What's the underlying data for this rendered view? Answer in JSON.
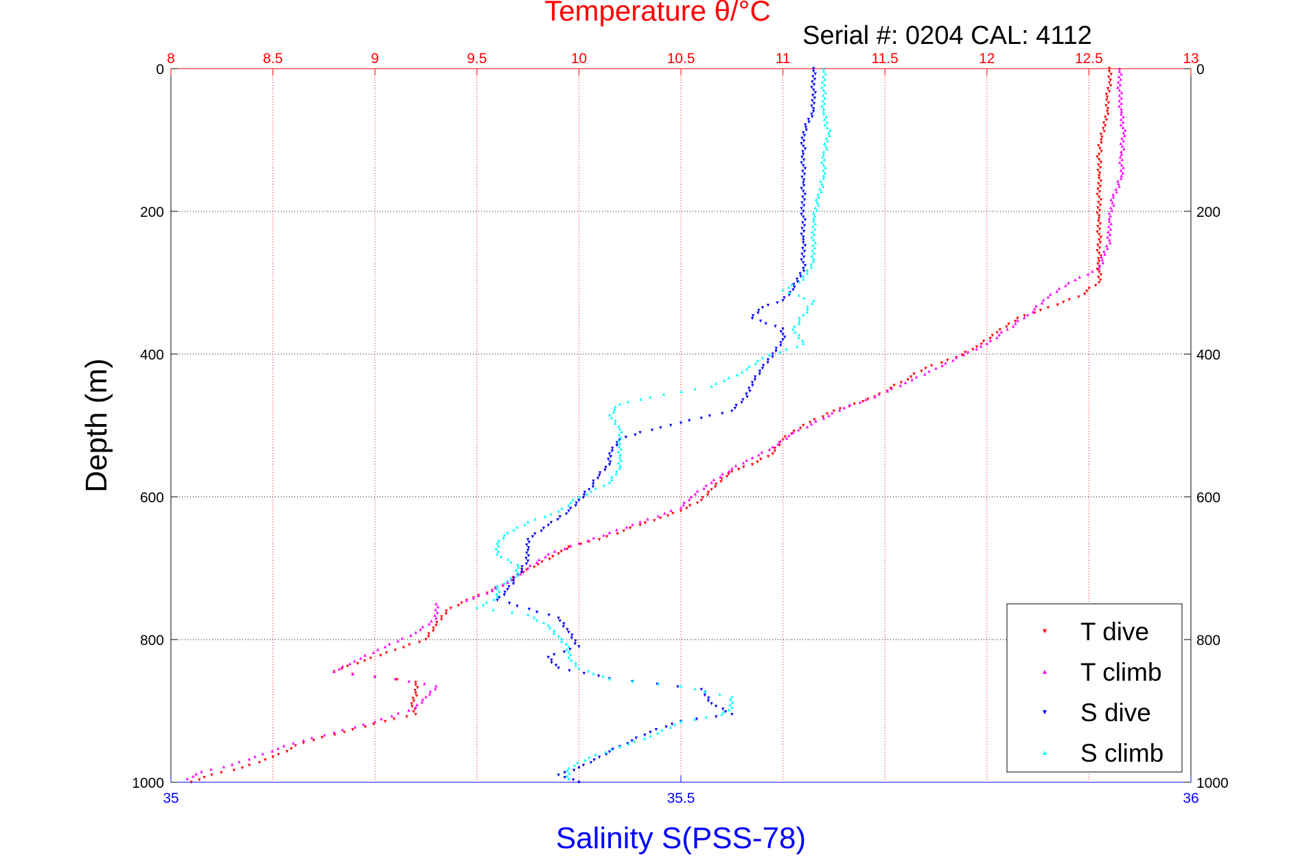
{
  "chart_data": {
    "type": "scatter",
    "title": "Temperature θ/°C",
    "subtitle": "Serial #: 0204  CAL: 4112",
    "ylabel": "Depth (m)",
    "xlabel": "Salinity S(PSS-78)",
    "ylim": [
      0,
      1000
    ],
    "y_reversed": true,
    "x_top": {
      "label": "Temperature θ/°C",
      "range": [
        8,
        13
      ],
      "ticks": [
        "8",
        "8.5",
        "9",
        "9.5",
        "10",
        "10.5",
        "11",
        "11.5",
        "12",
        "12.5",
        "13"
      ],
      "color": "#ff0000"
    },
    "x_bottom": {
      "label": "Salinity S(PSS-78)",
      "range": [
        35,
        36
      ],
      "ticks": [
        "35",
        "35.5",
        "36"
      ],
      "color": "#0000ff"
    },
    "y_ticks": [
      "0",
      "200",
      "400",
      "600",
      "800",
      "1000"
    ],
    "grid": true,
    "legend_position": "bottom-right",
    "series": [
      {
        "name": "T dive",
        "axis": "top",
        "color": "#ff0000",
        "marker": "triangle-down",
        "points": [
          [
            12.6,
            0
          ],
          [
            12.6,
            20
          ],
          [
            12.59,
            40
          ],
          [
            12.59,
            60
          ],
          [
            12.58,
            80
          ],
          [
            12.56,
            100
          ],
          [
            12.55,
            120
          ],
          [
            12.55,
            150
          ],
          [
            12.55,
            180
          ],
          [
            12.55,
            210
          ],
          [
            12.55,
            240
          ],
          [
            12.55,
            270
          ],
          [
            12.55,
            300
          ],
          [
            12.45,
            320
          ],
          [
            12.3,
            335
          ],
          [
            12.15,
            350
          ],
          [
            12.05,
            370
          ],
          [
            11.95,
            390
          ],
          [
            11.85,
            405
          ],
          [
            11.7,
            420
          ],
          [
            11.58,
            440
          ],
          [
            11.45,
            460
          ],
          [
            11.35,
            470
          ],
          [
            11.25,
            480
          ],
          [
            11.1,
            500
          ],
          [
            11.0,
            520
          ],
          [
            10.95,
            540
          ],
          [
            10.85,
            555
          ],
          [
            10.75,
            565
          ],
          [
            10.7,
            575
          ],
          [
            10.65,
            590
          ],
          [
            10.6,
            605
          ],
          [
            10.5,
            620
          ],
          [
            10.4,
            630
          ],
          [
            10.3,
            640
          ],
          [
            10.1,
            660
          ],
          [
            9.95,
            670
          ],
          [
            9.9,
            680
          ],
          [
            9.8,
            695
          ],
          [
            9.7,
            710
          ],
          [
            9.65,
            720
          ],
          [
            9.55,
            735
          ],
          [
            9.45,
            745
          ],
          [
            9.35,
            760
          ],
          [
            9.3,
            780
          ],
          [
            9.25,
            800
          ],
          [
            9.1,
            815
          ],
          [
            8.95,
            830
          ],
          [
            8.8,
            845
          ],
          [
            9.2,
            860
          ],
          [
            9.2,
            875
          ],
          [
            9.18,
            890
          ],
          [
            9.2,
            905
          ],
          [
            9.05,
            915
          ],
          [
            8.85,
            930
          ],
          [
            8.65,
            945
          ],
          [
            8.5,
            965
          ],
          [
            8.35,
            980
          ],
          [
            8.2,
            990
          ],
          [
            8.1,
            1000
          ]
        ]
      },
      {
        "name": "T climb",
        "axis": "top",
        "color": "#ff00ff",
        "marker": "triangle-up",
        "points": [
          [
            12.65,
            0
          ],
          [
            12.65,
            30
          ],
          [
            12.66,
            60
          ],
          [
            12.67,
            90
          ],
          [
            12.66,
            120
          ],
          [
            12.66,
            150
          ],
          [
            12.62,
            180
          ],
          [
            12.6,
            210
          ],
          [
            12.6,
            240
          ],
          [
            12.55,
            280
          ],
          [
            12.4,
            300
          ],
          [
            12.3,
            320
          ],
          [
            12.2,
            345
          ],
          [
            12.1,
            365
          ],
          [
            12.0,
            385
          ],
          [
            11.85,
            405
          ],
          [
            11.75,
            420
          ],
          [
            11.6,
            440
          ],
          [
            11.45,
            460
          ],
          [
            11.3,
            475
          ],
          [
            11.2,
            490
          ],
          [
            11.05,
            510
          ],
          [
            10.95,
            530
          ],
          [
            10.85,
            545
          ],
          [
            10.75,
            560
          ],
          [
            10.65,
            580
          ],
          [
            10.55,
            600
          ],
          [
            10.5,
            615
          ],
          [
            10.3,
            635
          ],
          [
            10.15,
            650
          ],
          [
            10.0,
            665
          ],
          [
            9.85,
            680
          ],
          [
            9.75,
            700
          ],
          [
            9.65,
            720
          ],
          [
            9.55,
            735
          ],
          [
            9.45,
            745
          ],
          [
            9.3,
            750
          ],
          [
            9.3,
            770
          ],
          [
            9.2,
            790
          ],
          [
            9.05,
            810
          ],
          [
            8.9,
            830
          ],
          [
            8.8,
            845
          ],
          [
            9.1,
            855
          ],
          [
            9.3,
            865
          ],
          [
            9.25,
            880
          ],
          [
            9.2,
            895
          ],
          [
            9.0,
            915
          ],
          [
            8.8,
            930
          ],
          [
            8.6,
            945
          ],
          [
            8.45,
            960
          ],
          [
            8.3,
            975
          ],
          [
            8.15,
            985
          ],
          [
            8.08,
            995
          ]
        ]
      },
      {
        "name": "S dive",
        "axis": "bottom",
        "color": "#0000ff",
        "marker": "triangle-down",
        "points": [
          [
            35.63,
            0
          ],
          [
            35.63,
            30
          ],
          [
            35.63,
            60
          ],
          [
            35.62,
            90
          ],
          [
            35.62,
            120
          ],
          [
            35.62,
            160
          ],
          [
            35.62,
            200
          ],
          [
            35.62,
            240
          ],
          [
            35.62,
            280
          ],
          [
            35.61,
            310
          ],
          [
            35.6,
            325
          ],
          [
            35.58,
            335
          ],
          [
            35.57,
            350
          ],
          [
            35.6,
            365
          ],
          [
            35.6,
            380
          ],
          [
            35.59,
            400
          ],
          [
            35.58,
            420
          ],
          [
            35.57,
            440
          ],
          [
            35.565,
            460
          ],
          [
            35.55,
            480
          ],
          [
            35.52,
            490
          ],
          [
            35.49,
            500
          ],
          [
            35.46,
            510
          ],
          [
            35.44,
            520
          ],
          [
            35.43,
            540
          ],
          [
            35.43,
            555
          ],
          [
            35.42,
            570
          ],
          [
            35.41,
            590
          ],
          [
            35.4,
            605
          ],
          [
            35.39,
            620
          ],
          [
            35.37,
            640
          ],
          [
            35.35,
            660
          ],
          [
            35.35,
            675
          ],
          [
            35.35,
            690
          ],
          [
            35.34,
            710
          ],
          [
            35.33,
            730
          ],
          [
            35.32,
            745
          ],
          [
            35.38,
            770
          ],
          [
            35.39,
            790
          ],
          [
            35.4,
            810
          ],
          [
            35.37,
            825
          ],
          [
            35.38,
            840
          ],
          [
            35.43,
            855
          ],
          [
            35.52,
            870
          ],
          [
            35.53,
            890
          ],
          [
            35.55,
            905
          ],
          [
            35.5,
            915
          ],
          [
            35.47,
            930
          ],
          [
            35.44,
            950
          ],
          [
            35.42,
            965
          ],
          [
            35.4,
            980
          ],
          [
            35.38,
            990
          ],
          [
            35.4,
            1000
          ]
        ]
      },
      {
        "name": "S climb",
        "axis": "bottom",
        "color": "#00ffff",
        "marker": "triangle-up",
        "points": [
          [
            35.64,
            0
          ],
          [
            35.64,
            30
          ],
          [
            35.64,
            60
          ],
          [
            35.645,
            90
          ],
          [
            35.64,
            120
          ],
          [
            35.64,
            150
          ],
          [
            35.635,
            180
          ],
          [
            35.63,
            210
          ],
          [
            35.63,
            240
          ],
          [
            35.63,
            270
          ],
          [
            35.62,
            295
          ],
          [
            35.6,
            310
          ],
          [
            35.63,
            325
          ],
          [
            35.62,
            345
          ],
          [
            35.61,
            365
          ],
          [
            35.62,
            385
          ],
          [
            35.58,
            405
          ],
          [
            35.56,
            425
          ],
          [
            35.53,
            445
          ],
          [
            35.47,
            460
          ],
          [
            35.44,
            470
          ],
          [
            35.43,
            485
          ],
          [
            35.44,
            505
          ],
          [
            35.44,
            525
          ],
          [
            35.44,
            545
          ],
          [
            35.44,
            560
          ],
          [
            35.43,
            580
          ],
          [
            35.4,
            600
          ],
          [
            35.38,
            620
          ],
          [
            35.35,
            635
          ],
          [
            35.33,
            650
          ],
          [
            35.32,
            665
          ],
          [
            35.32,
            680
          ],
          [
            35.34,
            695
          ],
          [
            35.34,
            710
          ],
          [
            35.32,
            725
          ],
          [
            35.32,
            740
          ],
          [
            35.3,
            755
          ],
          [
            35.35,
            765
          ],
          [
            35.37,
            780
          ],
          [
            35.38,
            795
          ],
          [
            35.39,
            810
          ],
          [
            35.39,
            825
          ],
          [
            35.4,
            840
          ],
          [
            35.43,
            855
          ],
          [
            35.5,
            865
          ],
          [
            35.55,
            880
          ],
          [
            35.55,
            895
          ],
          [
            35.54,
            905
          ],
          [
            35.5,
            915
          ],
          [
            35.47,
            935
          ],
          [
            35.44,
            950
          ],
          [
            35.41,
            965
          ],
          [
            35.39,
            980
          ],
          [
            35.39,
            995
          ]
        ]
      }
    ]
  }
}
